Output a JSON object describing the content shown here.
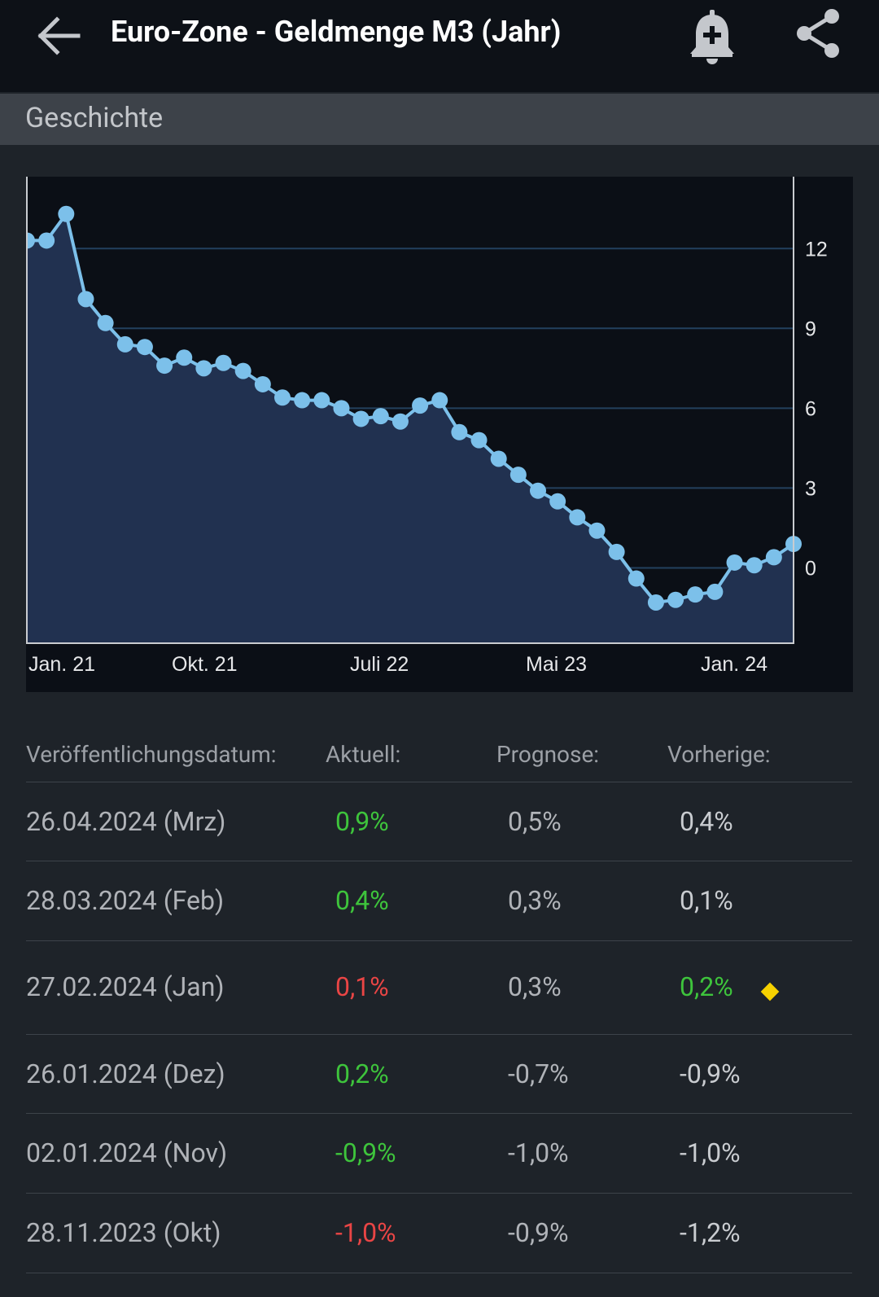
{
  "header": {
    "title": "Euro-Zone - Geldmenge M3 (Jahr)",
    "back_icon": "arrow-left-icon",
    "alert_icon": "bell-plus-icon",
    "share_icon": "share-icon"
  },
  "section": {
    "title": "Geschichte"
  },
  "chart_data": {
    "type": "area",
    "title": "",
    "xlabel": "",
    "ylabel": "",
    "x_tick_labels": [
      "Jan. 21",
      "Okt. 21",
      "Juli 22",
      "Mai 23",
      "Jan. 24"
    ],
    "y_ticks": [
      12,
      9,
      6,
      3,
      0
    ],
    "ylim": [
      -2.8,
      14.7
    ],
    "y_axis_side": "right",
    "grid": true,
    "colors": {
      "line": "#7cc0ea",
      "fill": "#213150",
      "background": "#0b0f16",
      "grid": "#23405e"
    },
    "values": [
      12.3,
      12.3,
      13.3,
      10.1,
      9.2,
      8.4,
      8.3,
      7.6,
      7.9,
      7.5,
      7.7,
      7.4,
      6.9,
      6.4,
      6.3,
      6.3,
      6.0,
      5.6,
      5.7,
      5.5,
      6.1,
      6.3,
      5.1,
      4.8,
      4.1,
      3.5,
      2.9,
      2.5,
      1.9,
      1.4,
      0.6,
      -0.4,
      -1.3,
      -1.2,
      -1.0,
      -0.9,
      0.2,
      0.1,
      0.4,
      0.9
    ]
  },
  "table": {
    "headers": {
      "date": "Veröffentlichungsdatum:",
      "actual": "Aktuell:",
      "forecast": "Prognose:",
      "previous": "Vorherige:"
    },
    "rows": [
      {
        "date": "26.04.2024 (Mrz)",
        "actual": "0,9%",
        "actual_status": "green",
        "forecast": "0,5%",
        "previous": "0,4%",
        "previous_status": "neutral",
        "revised": false
      },
      {
        "date": "28.03.2024 (Feb)",
        "actual": "0,4%",
        "actual_status": "green",
        "forecast": "0,3%",
        "previous": "0,1%",
        "previous_status": "neutral",
        "revised": false
      },
      {
        "date": "27.02.2024 (Jan)",
        "actual": "0,1%",
        "actual_status": "red",
        "forecast": "0,3%",
        "previous": "0,2%",
        "previous_status": "green",
        "revised": true
      },
      {
        "date": "26.01.2024 (Dez)",
        "actual": "0,2%",
        "actual_status": "green",
        "forecast": "-0,7%",
        "previous": "-0,9%",
        "previous_status": "neutral",
        "revised": false
      },
      {
        "date": "02.01.2024 (Nov)",
        "actual": "-0,9%",
        "actual_status": "green",
        "forecast": "-1,0%",
        "previous": "-1,0%",
        "previous_status": "neutral",
        "revised": false
      },
      {
        "date": "28.11.2023 (Okt)",
        "actual": "-1,0%",
        "actual_status": "red",
        "forecast": "-0,9%",
        "previous": "-1,2%",
        "previous_status": "neutral",
        "revised": false
      }
    ]
  }
}
